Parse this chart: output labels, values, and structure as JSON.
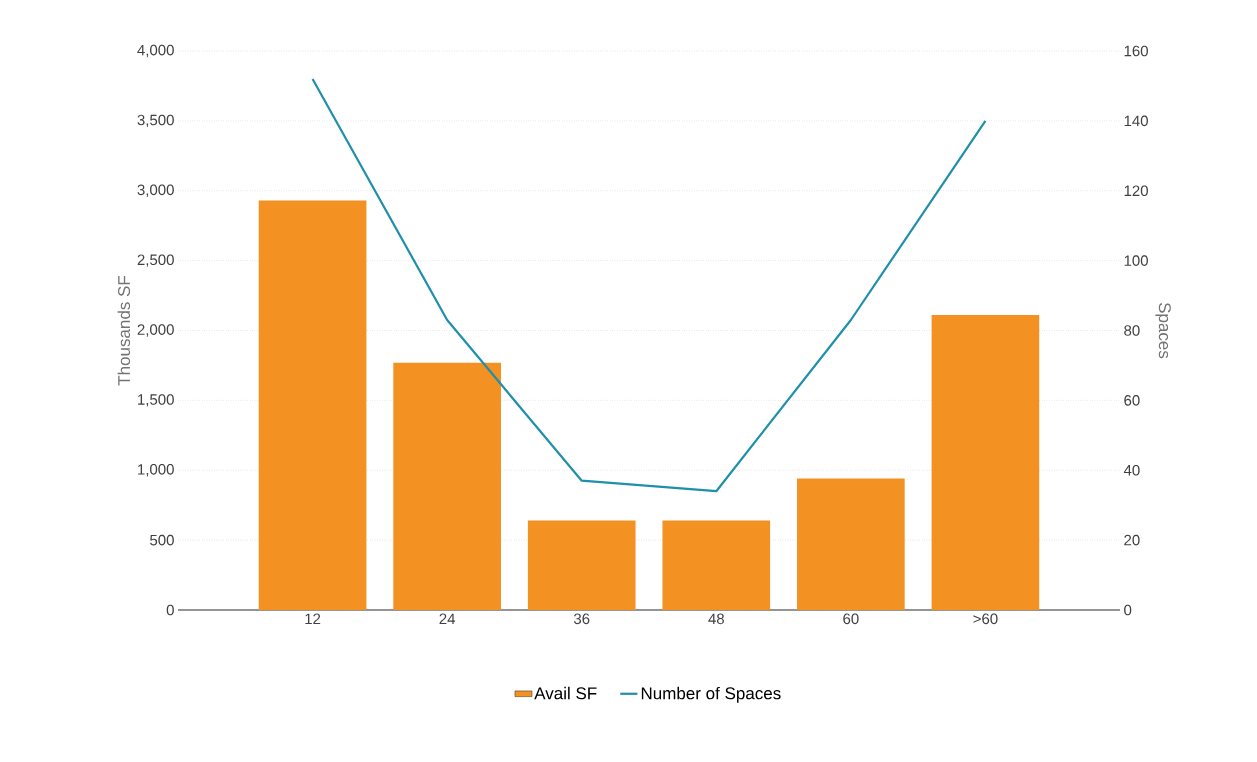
{
  "chart_data": {
    "type": "bar",
    "categories": [
      "12",
      "24",
      "36",
      "48",
      "60",
      ">60"
    ],
    "ylabel": "Thousands SF",
    "y2label": "Spaces",
    "ylim": [
      0,
      4000
    ],
    "yticks": [
      {
        "value": 0,
        "label": "0"
      },
      {
        "value": 500,
        "label": "500"
      },
      {
        "value": 1000,
        "label": "1,000"
      },
      {
        "value": 1500,
        "label": "1,500"
      },
      {
        "value": 2000,
        "label": "2,000"
      },
      {
        "value": 2500,
        "label": "2,500"
      },
      {
        "value": 3000,
        "label": "3,000"
      },
      {
        "value": 3500,
        "label": "3,500"
      },
      {
        "value": 4000,
        "label": "4,000"
      }
    ],
    "y2lim": [
      0,
      160
    ],
    "y2ticks": [
      0,
      20,
      40,
      60,
      80,
      100,
      120,
      140,
      160
    ],
    "grid": "y",
    "legend": "bottom",
    "series": [
      {
        "name": "Avail SF",
        "color": "#f39122",
        "values": [
          2930,
          1770,
          640,
          640,
          940,
          2110
        ]
      },
      {
        "name": "Number of Spaces",
        "type": "line",
        "axis": "y2",
        "color": "#1f8fab",
        "marker": "none",
        "values": [
          152,
          83,
          37,
          34,
          83,
          140
        ]
      }
    ]
  }
}
